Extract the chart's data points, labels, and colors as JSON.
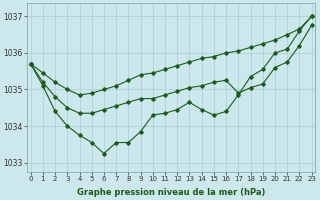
{
  "hours": [
    0,
    1,
    2,
    3,
    4,
    5,
    6,
    7,
    8,
    9,
    10,
    11,
    12,
    13,
    14,
    15,
    16,
    17,
    18,
    19,
    20,
    21,
    22,
    23
  ],
  "line_actual": [
    1035.7,
    1035.1,
    1034.4,
    1034.0,
    1033.75,
    1033.55,
    1033.25,
    1033.55,
    1033.55,
    1033.85,
    1034.3,
    1034.35,
    1034.45,
    1034.65,
    1034.45,
    1034.3,
    1034.4,
    1034.85,
    1035.35,
    1035.55,
    1036.0,
    1036.1,
    1036.6,
    1037.0
  ],
  "line_upper": [
    1035.7,
    1035.45,
    1035.2,
    1035.0,
    1034.85,
    1034.9,
    1035.0,
    1035.1,
    1035.25,
    1035.4,
    1035.45,
    1035.55,
    1035.65,
    1035.75,
    1035.85,
    1035.9,
    1036.0,
    1036.05,
    1036.15,
    1036.25,
    1036.35,
    1036.5,
    1036.65,
    1037.0
  ],
  "line_lower": [
    1035.7,
    1035.2,
    1034.8,
    1034.5,
    1034.35,
    1034.35,
    1034.45,
    1034.55,
    1034.65,
    1034.75,
    1034.75,
    1034.85,
    1034.95,
    1035.05,
    1035.1,
    1035.2,
    1035.25,
    1034.9,
    1035.05,
    1035.15,
    1035.6,
    1035.75,
    1036.2,
    1036.75
  ],
  "background_color": "#cce8ec",
  "grid_color": "#aaccd4",
  "line_color": "#1a5c1a",
  "ylabel_ticks": [
    1033,
    1034,
    1035,
    1036,
    1037
  ],
  "xlabel_label": "Graphe pression niveau de la mer (hPa)",
  "ylim": [
    1032.75,
    1037.35
  ],
  "xlim": [
    -0.3,
    23.3
  ],
  "tick_fontsize": 5.0,
  "xlabel_fontsize": 6.0
}
